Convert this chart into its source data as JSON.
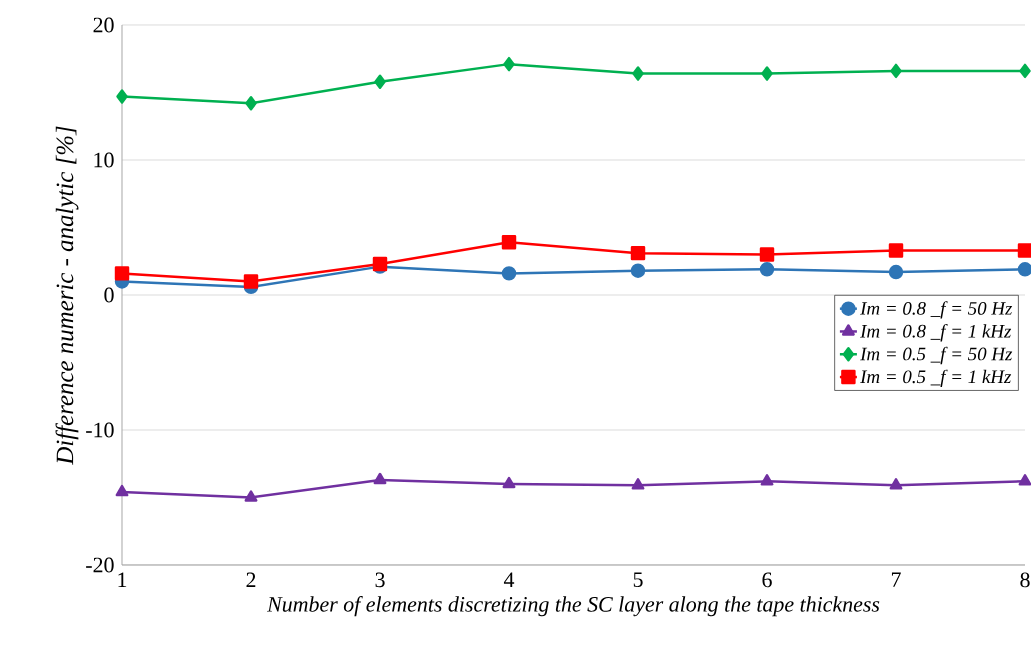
{
  "chart_data": {
    "type": "line",
    "xlabel": "Number of elements discretizing the SC layer along the tape thickness",
    "ylabel": "Difference numeric - analytic [%]",
    "x": [
      1,
      2,
      3,
      4,
      5,
      6,
      7,
      8
    ],
    "series": [
      {
        "name": "Im = 0.8 _f = 50 Hz",
        "color": "#2e75b6",
        "marker": "circle",
        "values": [
          1.0,
          0.6,
          2.1,
          1.6,
          1.8,
          1.9,
          1.7,
          1.9
        ]
      },
      {
        "name": "Im = 0.8 _f = 1 kHz",
        "color": "#7030a0",
        "marker": "triangle",
        "values": [
          -14.6,
          -15.0,
          -13.7,
          -14.0,
          -14.1,
          -13.8,
          -14.1,
          -13.8
        ]
      },
      {
        "name": "Im = 0.5 _f = 50 Hz",
        "color": "#00b050",
        "marker": "diamond",
        "values": [
          14.7,
          14.2,
          15.8,
          17.1,
          16.4,
          16.4,
          16.6,
          16.6
        ]
      },
      {
        "name": "Im = 0.5 _f = 1 kHz",
        "color": "#ff0000",
        "marker": "square",
        "values": [
          1.6,
          1.0,
          2.3,
          3.9,
          3.1,
          3.0,
          3.3,
          3.3
        ]
      }
    ],
    "xlim": [
      1,
      8
    ],
    "ylim": [
      -20,
      20
    ],
    "xticks": [
      1,
      2,
      3,
      4,
      5,
      6,
      7,
      8
    ],
    "yticks": [
      -20,
      -10,
      0,
      10,
      20
    ],
    "grid": "y",
    "legend": "right",
    "line_style": "solid"
  }
}
